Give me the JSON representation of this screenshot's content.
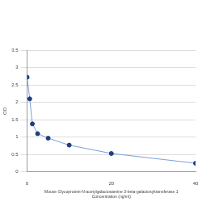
{
  "chart_data": {
    "type": "line",
    "x_label": [
      "Mouse Glycoprotein-N-acetylgalactosamine 3-beta-galactosyltransferase 1",
      "Concentration (ng/ml)"
    ],
    "y_label": "OD",
    "x": [
      0,
      0.625,
      1.25,
      2.5,
      5,
      10,
      20,
      40
    ],
    "values": [
      2.72,
      2.1,
      1.38,
      1.1,
      0.97,
      0.77,
      0.53,
      0.25
    ],
    "color": "#1f3f7f",
    "marker": "circle",
    "xlim": [
      0,
      40
    ],
    "xticks": [
      0,
      20,
      40
    ],
    "ylim": [
      0,
      3.5
    ],
    "yticks": [
      0,
      0.5,
      1,
      1.5,
      2,
      2.5,
      3,
      3.5
    ],
    "grid": "y"
  }
}
